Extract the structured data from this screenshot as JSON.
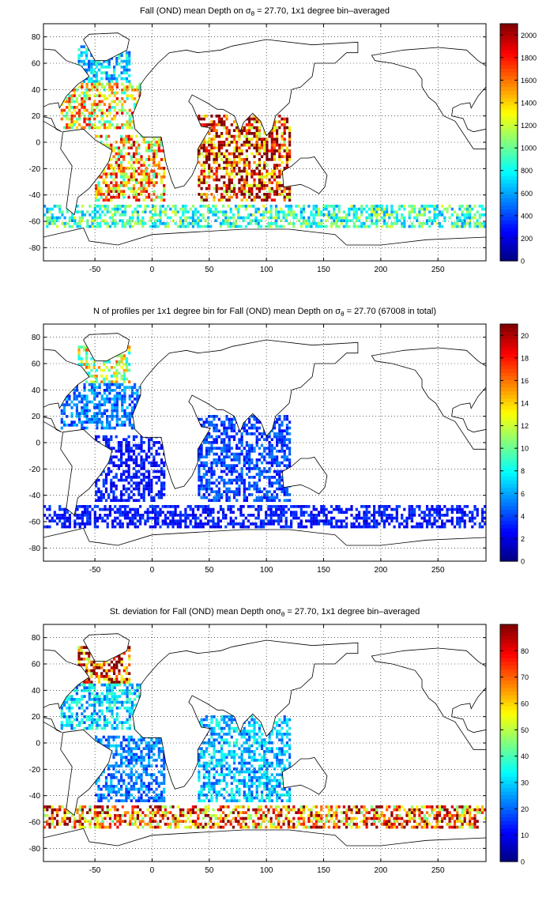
{
  "chart_data": [
    {
      "type": "heatmap",
      "title_pre": "Fall (OND) mean Depth on ",
      "title_sigma": "σ",
      "title_sub": "θ",
      "title_post": " = 27.70, 1x1 degree bin–averaged",
      "xlim": [
        -95,
        292
      ],
      "ylim": [
        -90,
        90
      ],
      "xticks": [
        -50,
        0,
        50,
        100,
        150,
        200,
        250
      ],
      "yticks": [
        80,
        60,
        40,
        20,
        0,
        -20,
        -40,
        -60,
        -80
      ],
      "colorbar": {
        "min": 0,
        "max": 2100,
        "ticks": [
          2000,
          1800,
          1600,
          1400,
          1200,
          1000,
          800,
          600,
          400,
          200,
          0
        ]
      },
      "colormap": "jet",
      "regions": [
        {
          "name": "north-atlantic-subpolar",
          "lon": [
            -65,
            -20
          ],
          "lat": [
            45,
            72
          ],
          "value": 700
        },
        {
          "name": "north-atlantic-subtropical",
          "lon": [
            -80,
            -10
          ],
          "lat": [
            10,
            45
          ],
          "value": 1350
        },
        {
          "name": "south-atlantic",
          "lon": [
            -50,
            10
          ],
          "lat": [
            -45,
            5
          ],
          "value": 1450
        },
        {
          "name": "indian-ocean",
          "lon": [
            40,
            120
          ],
          "lat": [
            -45,
            20
          ],
          "value": 1850
        },
        {
          "name": "southern-ocean-band",
          "lon": [
            -95,
            292
          ],
          "lat": [
            -65,
            -48
          ],
          "value": 900
        }
      ]
    },
    {
      "type": "heatmap",
      "title_pre": "N of profiles per 1x1 degree bin for Fall (OND) mean Depth on ",
      "title_sigma": "σ",
      "title_sub": "θ",
      "title_post": " = 27.70 (67008 in total)",
      "xlim": [
        -95,
        292
      ],
      "ylim": [
        -90,
        90
      ],
      "xticks": [
        -50,
        0,
        50,
        100,
        150,
        200,
        250
      ],
      "yticks": [
        80,
        60,
        40,
        20,
        0,
        -20,
        -40,
        -60,
        -80
      ],
      "colorbar": {
        "min": 0,
        "max": 21,
        "ticks": [
          20,
          18,
          16,
          14,
          12,
          10,
          8,
          6,
          4,
          2,
          0
        ]
      },
      "colormap": "jet",
      "regions": [
        {
          "name": "north-atlantic-subpolar",
          "lon": [
            -65,
            -20
          ],
          "lat": [
            45,
            72
          ],
          "value": 12
        },
        {
          "name": "north-atlantic-subtropical",
          "lon": [
            -80,
            -10
          ],
          "lat": [
            10,
            45
          ],
          "value": 5
        },
        {
          "name": "south-atlantic",
          "lon": [
            -50,
            10
          ],
          "lat": [
            -45,
            5
          ],
          "value": 3
        },
        {
          "name": "indian-ocean",
          "lon": [
            40,
            120
          ],
          "lat": [
            -45,
            20
          ],
          "value": 4
        },
        {
          "name": "southern-ocean-band",
          "lon": [
            -95,
            292
          ],
          "lat": [
            -65,
            -48
          ],
          "value": 3
        }
      ]
    },
    {
      "type": "heatmap",
      "title_pre": "St. deviation for Fall (OND) mean Depth on",
      "title_sigma": "σ",
      "title_sub": "θ",
      "title_post": " = 27.70, 1x1 degree bin–averaged",
      "xlim": [
        -95,
        292
      ],
      "ylim": [
        -90,
        90
      ],
      "xticks": [
        -50,
        0,
        50,
        100,
        150,
        200,
        250
      ],
      "yticks": [
        80,
        60,
        40,
        20,
        0,
        -20,
        -40,
        -60,
        -80
      ],
      "colorbar": {
        "min": 0,
        "max": 90,
        "ticks": [
          80,
          70,
          60,
          50,
          40,
          30,
          20,
          10,
          0
        ]
      },
      "colormap": "jet",
      "regions": [
        {
          "name": "north-atlantic-subpolar",
          "lon": [
            -65,
            -20
          ],
          "lat": [
            45,
            72
          ],
          "value": 80
        },
        {
          "name": "north-atlantic-subtropical",
          "lon": [
            -80,
            -10
          ],
          "lat": [
            10,
            45
          ],
          "value": 30
        },
        {
          "name": "south-atlantic",
          "lon": [
            -50,
            10
          ],
          "lat": [
            -45,
            5
          ],
          "value": 22
        },
        {
          "name": "indian-ocean",
          "lon": [
            40,
            120
          ],
          "lat": [
            -45,
            20
          ],
          "value": 28
        },
        {
          "name": "southern-ocean-band",
          "lon": [
            -95,
            292
          ],
          "lat": [
            -65,
            -48
          ],
          "value": 70
        }
      ]
    }
  ]
}
